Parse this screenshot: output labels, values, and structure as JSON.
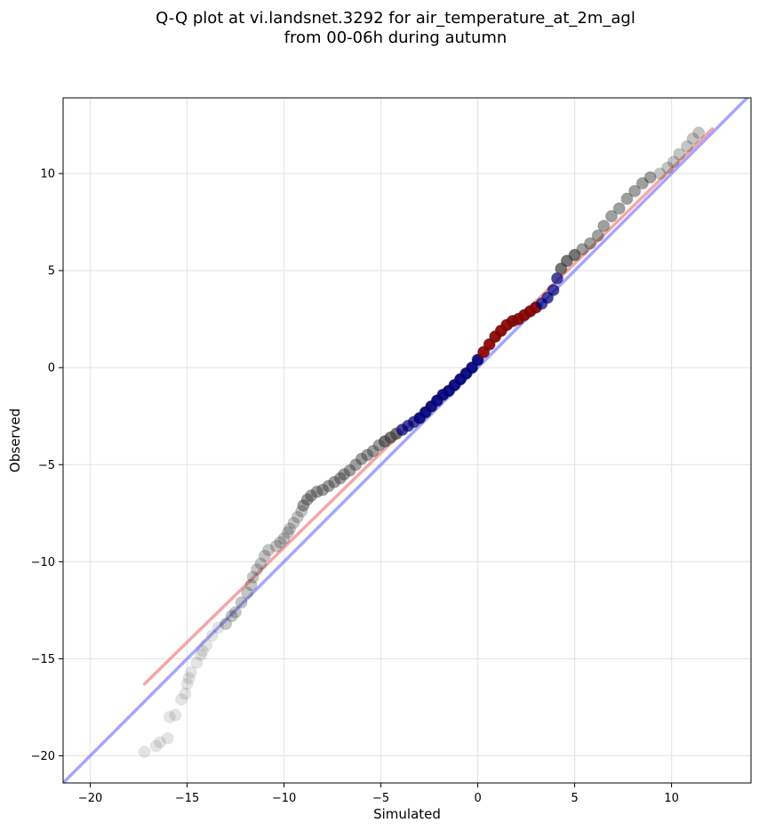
{
  "chart_data": {
    "type": "scatter",
    "title": [
      "Q-Q plot at vi.landsnet.3292 for air_temperature_at_2m_agl",
      "from 00-06h during autumn"
    ],
    "xlabel": "Simulated",
    "ylabel": "Observed",
    "xlim": [
      -21.4,
      14.1
    ],
    "ylim": [
      -21.4,
      13.9
    ],
    "xticks": [
      -20,
      -15,
      -10,
      -5,
      0,
      5,
      10
    ],
    "yticks": [
      -20,
      -15,
      -10,
      -5,
      0,
      5,
      10
    ],
    "xtick_labels": [
      "−20",
      "−15",
      "−10",
      "−5",
      "0",
      "5",
      "10"
    ],
    "ytick_labels": [
      "−20",
      "−15",
      "−10",
      "−5",
      "0",
      "5",
      "10"
    ],
    "grid": true,
    "colors": {
      "points": "#404040",
      "fit_line": "#f08080",
      "identity_line": "#8080ff",
      "dense_core_red": "#8b0000",
      "dense_core_blue": "#000080"
    },
    "fit_line": {
      "x": [
        -17.2,
        12.1
      ],
      "y": [
        -16.3,
        12.3
      ]
    },
    "identity_line": {
      "x": [
        -21.4,
        14.1
      ],
      "y": [
        -21.4,
        14.1
      ]
    },
    "quantiles": [
      {
        "x": -17.2,
        "y": -19.8
      },
      {
        "x": -16.6,
        "y": -19.5
      },
      {
        "x": -16.4,
        "y": -19.3
      },
      {
        "x": -16.0,
        "y": -19.1
      },
      {
        "x": -15.9,
        "y": -18.0
      },
      {
        "x": -15.6,
        "y": -17.9
      },
      {
        "x": -15.3,
        "y": -17.1
      },
      {
        "x": -15.1,
        "y": -16.8
      },
      {
        "x": -15.0,
        "y": -16.3
      },
      {
        "x": -14.9,
        "y": -16.0
      },
      {
        "x": -14.8,
        "y": -15.7
      },
      {
        "x": -14.5,
        "y": -15.2
      },
      {
        "x": -14.3,
        "y": -14.8
      },
      {
        "x": -14.2,
        "y": -14.6
      },
      {
        "x": -14.0,
        "y": -14.3
      },
      {
        "x": -13.7,
        "y": -13.8
      },
      {
        "x": -13.4,
        "y": -13.4
      },
      {
        "x": -13.0,
        "y": -13.2
      },
      {
        "x": -12.7,
        "y": -12.8
      },
      {
        "x": -12.5,
        "y": -12.6
      },
      {
        "x": -12.2,
        "y": -12.1
      },
      {
        "x": -11.9,
        "y": -11.6
      },
      {
        "x": -11.7,
        "y": -11.2
      },
      {
        "x": -11.6,
        "y": -10.8
      },
      {
        "x": -11.4,
        "y": -10.4
      },
      {
        "x": -11.2,
        "y": -10.1
      },
      {
        "x": -11.0,
        "y": -9.7
      },
      {
        "x": -10.8,
        "y": -9.4
      },
      {
        "x": -10.4,
        "y": -9.2
      },
      {
        "x": -10.2,
        "y": -9.0
      },
      {
        "x": -10.0,
        "y": -8.8
      },
      {
        "x": -9.8,
        "y": -8.5
      },
      {
        "x": -9.7,
        "y": -8.3
      },
      {
        "x": -9.5,
        "y": -8.0
      },
      {
        "x": -9.3,
        "y": -7.7
      },
      {
        "x": -9.1,
        "y": -7.4
      },
      {
        "x": -9.0,
        "y": -7.1
      },
      {
        "x": -8.8,
        "y": -6.8
      },
      {
        "x": -8.6,
        "y": -6.6
      },
      {
        "x": -8.3,
        "y": -6.4
      },
      {
        "x": -8.0,
        "y": -6.3
      },
      {
        "x": -7.7,
        "y": -6.1
      },
      {
        "x": -7.4,
        "y": -5.9
      },
      {
        "x": -7.1,
        "y": -5.7
      },
      {
        "x": -6.9,
        "y": -5.5
      },
      {
        "x": -6.6,
        "y": -5.3
      },
      {
        "x": -6.3,
        "y": -5.0
      },
      {
        "x": -6.0,
        "y": -4.7
      },
      {
        "x": -5.7,
        "y": -4.5
      },
      {
        "x": -5.4,
        "y": -4.3
      },
      {
        "x": -5.1,
        "y": -4.0
      },
      {
        "x": -4.8,
        "y": -3.8
      },
      {
        "x": -4.5,
        "y": -3.6
      },
      {
        "x": -4.2,
        "y": -3.4
      },
      {
        "x": -3.9,
        "y": -3.2
      },
      {
        "x": -3.6,
        "y": -3.0
      },
      {
        "x": -3.3,
        "y": -2.8
      },
      {
        "x": -3.0,
        "y": -2.6
      },
      {
        "x": -2.7,
        "y": -2.3
      },
      {
        "x": -2.4,
        "y": -2.0
      },
      {
        "x": -2.1,
        "y": -1.7
      },
      {
        "x": -1.8,
        "y": -1.4
      },
      {
        "x": -1.5,
        "y": -1.2
      },
      {
        "x": -1.2,
        "y": -0.9
      },
      {
        "x": -0.9,
        "y": -0.6
      },
      {
        "x": -0.6,
        "y": -0.3
      },
      {
        "x": -0.3,
        "y": 0.0
      },
      {
        "x": 0.0,
        "y": 0.4
      },
      {
        "x": 0.3,
        "y": 0.8
      },
      {
        "x": 0.6,
        "y": 1.2
      },
      {
        "x": 0.9,
        "y": 1.6
      },
      {
        "x": 1.2,
        "y": 1.9
      },
      {
        "x": 1.5,
        "y": 2.2
      },
      {
        "x": 1.8,
        "y": 2.4
      },
      {
        "x": 2.1,
        "y": 2.5
      },
      {
        "x": 2.4,
        "y": 2.7
      },
      {
        "x": 2.7,
        "y": 2.9
      },
      {
        "x": 3.0,
        "y": 3.1
      },
      {
        "x": 3.3,
        "y": 3.3
      },
      {
        "x": 3.6,
        "y": 3.6
      },
      {
        "x": 3.9,
        "y": 4.0
      },
      {
        "x": 4.1,
        "y": 4.6
      },
      {
        "x": 4.3,
        "y": 5.1
      },
      {
        "x": 4.6,
        "y": 5.5
      },
      {
        "x": 5.0,
        "y": 5.8
      },
      {
        "x": 5.4,
        "y": 6.1
      },
      {
        "x": 5.8,
        "y": 6.4
      },
      {
        "x": 6.2,
        "y": 6.8
      },
      {
        "x": 6.5,
        "y": 7.3
      },
      {
        "x": 6.9,
        "y": 7.8
      },
      {
        "x": 7.3,
        "y": 8.2
      },
      {
        "x": 7.7,
        "y": 8.7
      },
      {
        "x": 8.1,
        "y": 9.1
      },
      {
        "x": 8.5,
        "y": 9.5
      },
      {
        "x": 8.9,
        "y": 9.8
      },
      {
        "x": 9.4,
        "y": 10.0
      },
      {
        "x": 9.8,
        "y": 10.3
      },
      {
        "x": 10.1,
        "y": 10.6
      },
      {
        "x": 10.4,
        "y": 11.0
      },
      {
        "x": 10.8,
        "y": 11.4
      },
      {
        "x": 11.1,
        "y": 11.8
      },
      {
        "x": 11.4,
        "y": 12.1
      }
    ]
  }
}
